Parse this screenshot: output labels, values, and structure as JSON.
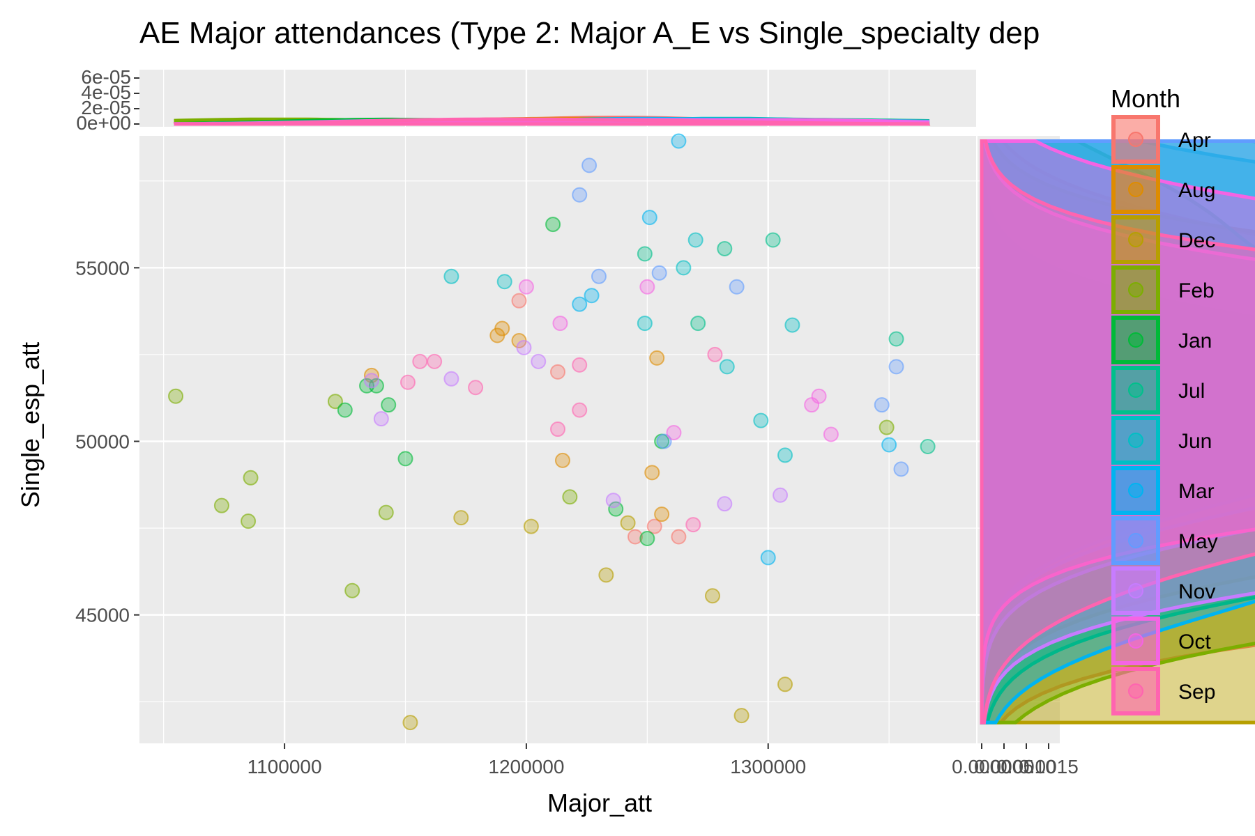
{
  "chart_data": {
    "type": "scatter",
    "title": "AE Major attendances (Type 2: Major A_E vs Single_specialty dep",
    "xlabel": "Major_att",
    "ylabel": "Single_esp_att",
    "xlim": [
      1040000,
      1386000
    ],
    "ylim": [
      41300,
      58800
    ],
    "x_ticks": [
      1100000,
      1200000,
      1300000
    ],
    "x_tick_labels": [
      "1100000",
      "1200000",
      "1300000"
    ],
    "y_ticks": [
      45000,
      50000,
      55000
    ],
    "y_tick_labels": [
      "45000",
      "50000",
      "55000"
    ],
    "top_density_ticks": [
      "0e+00",
      "2e-05",
      "4e-05",
      "6e-05"
    ],
    "right_density_tick_labels": [
      "0.0000",
      "0.0005",
      "0.0010",
      "0.0015"
    ],
    "grid": true,
    "legend": {
      "title": "Month",
      "placement": "right",
      "entries": [
        {
          "name": "Apr",
          "color": "#F8766D"
        },
        {
          "name": "Aug",
          "color": "#DE8C00"
        },
        {
          "name": "Dec",
          "color": "#B79F00"
        },
        {
          "name": "Feb",
          "color": "#7CAE00"
        },
        {
          "name": "Jan",
          "color": "#00BA38"
        },
        {
          "name": "Jul",
          "color": "#00C08B"
        },
        {
          "name": "Jun",
          "color": "#00BFC4"
        },
        {
          "name": "Mar",
          "color": "#00B4F0"
        },
        {
          "name": "May",
          "color": "#619CFF"
        },
        {
          "name": "Nov",
          "color": "#C77CFF"
        },
        {
          "name": "Oct",
          "color": "#F564E3"
        },
        {
          "name": "Sep",
          "color": "#FF64B0"
        }
      ]
    },
    "series": [
      {
        "name": "Apr",
        "color": "#F8766D",
        "points": [
          [
            1197000,
            54050
          ],
          [
            1213000,
            52000
          ],
          [
            1245000,
            47250
          ],
          [
            1253000,
            47550
          ],
          [
            1263000,
            47250
          ]
        ]
      },
      {
        "name": "Aug",
        "color": "#DE8C00",
        "points": [
          [
            1188000,
            53050
          ],
          [
            1190000,
            53250
          ],
          [
            1197000,
            52900
          ],
          [
            1215000,
            49450
          ],
          [
            1252000,
            49100
          ],
          [
            1254000,
            52400
          ],
          [
            1256000,
            47900
          ],
          [
            1136000,
            51900
          ]
        ]
      },
      {
        "name": "Dec",
        "color": "#B79F00",
        "points": [
          [
            1173000,
            47800
          ],
          [
            1202000,
            47550
          ],
          [
            1233000,
            46150
          ],
          [
            1242000,
            47650
          ],
          [
            1277000,
            45550
          ],
          [
            1289000,
            42100
          ],
          [
            1307000,
            43000
          ],
          [
            1152000,
            41900
          ]
        ]
      },
      {
        "name": "Feb",
        "color": "#7CAE00",
        "points": [
          [
            1055000,
            51300
          ],
          [
            1074000,
            48150
          ],
          [
            1085000,
            47700
          ],
          [
            1086000,
            48950
          ],
          [
            1121000,
            51150
          ],
          [
            1128000,
            45700
          ],
          [
            1142000,
            47950
          ],
          [
            1218000,
            48400
          ],
          [
            1349000,
            50400
          ]
        ]
      },
      {
        "name": "Jan",
        "color": "#00BA38",
        "points": [
          [
            1125000,
            50900
          ],
          [
            1134000,
            51600
          ],
          [
            1138000,
            51600
          ],
          [
            1143000,
            51050
          ],
          [
            1150000,
            49500
          ],
          [
            1211000,
            56250
          ],
          [
            1237000,
            48050
          ],
          [
            1250000,
            47200
          ],
          [
            1256000,
            50000
          ]
        ]
      },
      {
        "name": "Jul",
        "color": "#00C08B",
        "points": [
          [
            1249000,
            55400
          ],
          [
            1271000,
            53400
          ],
          [
            1282000,
            55550
          ],
          [
            1302000,
            55800
          ],
          [
            1353000,
            52950
          ],
          [
            1366000,
            49850
          ]
        ]
      },
      {
        "name": "Jun",
        "color": "#00BFC4",
        "points": [
          [
            1169000,
            54750
          ],
          [
            1191000,
            54600
          ],
          [
            1249000,
            53400
          ],
          [
            1265000,
            55000
          ],
          [
            1270000,
            55800
          ],
          [
            1283000,
            52150
          ],
          [
            1297000,
            50600
          ],
          [
            1307000,
            49600
          ],
          [
            1310000,
            53350
          ]
        ]
      },
      {
        "name": "Mar",
        "color": "#00B4F0",
        "points": [
          [
            1222000,
            53950
          ],
          [
            1227000,
            54200
          ],
          [
            1251000,
            56450
          ],
          [
            1263000,
            58650
          ],
          [
            1300000,
            46650
          ],
          [
            1350000,
            49900
          ]
        ]
      },
      {
        "name": "May",
        "color": "#619CFF",
        "points": [
          [
            1222000,
            57100
          ],
          [
            1226000,
            57950
          ],
          [
            1230000,
            54750
          ],
          [
            1255000,
            54850
          ],
          [
            1257000,
            50000
          ],
          [
            1287000,
            54450
          ],
          [
            1347000,
            51050
          ],
          [
            1353000,
            52150
          ],
          [
            1355000,
            49200
          ]
        ]
      },
      {
        "name": "Nov",
        "color": "#C77CFF",
        "points": [
          [
            1136000,
            51750
          ],
          [
            1140000,
            50650
          ],
          [
            1169000,
            51800
          ],
          [
            1199000,
            52700
          ],
          [
            1205000,
            52300
          ],
          [
            1236000,
            48300
          ],
          [
            1282000,
            48200
          ],
          [
            1305000,
            48450
          ]
        ]
      },
      {
        "name": "Oct",
        "color": "#F564E3",
        "points": [
          [
            1200000,
            54450
          ],
          [
            1214000,
            53400
          ],
          [
            1250000,
            54450
          ],
          [
            1261000,
            50250
          ],
          [
            1318000,
            51050
          ],
          [
            1321000,
            51300
          ],
          [
            1326000,
            50200
          ]
        ]
      },
      {
        "name": "Sep",
        "color": "#FF64B0",
        "points": [
          [
            1151000,
            51700
          ],
          [
            1156000,
            52300
          ],
          [
            1162000,
            52300
          ],
          [
            1179000,
            51550
          ],
          [
            1213000,
            50350
          ],
          [
            1222000,
            52200
          ],
          [
            1222000,
            50900
          ],
          [
            1269000,
            47600
          ],
          [
            1278000,
            52500
          ]
        ]
      }
    ]
  }
}
